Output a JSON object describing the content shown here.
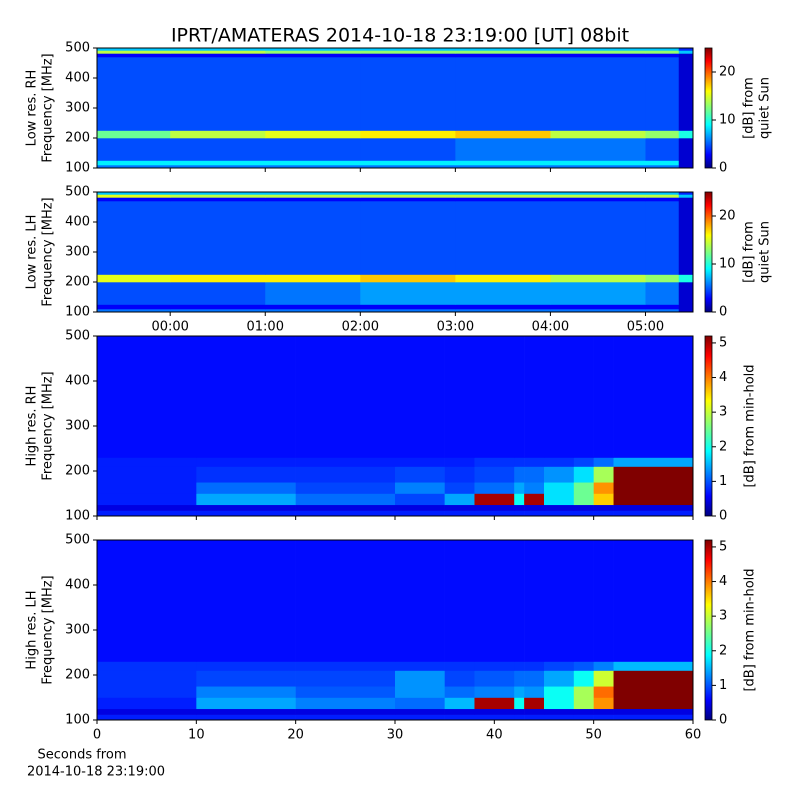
{
  "title": "IPRT/AMATERAS 2014-10-18 23:19:00 [UT]   08bit",
  "x_label": [
    "Seconds from",
    "2014-10-18 23:19:00"
  ],
  "chart_data": [
    {
      "type": "heatmap",
      "y_label": [
        "Low res. RH",
        "Frequency [MHz]"
      ],
      "xlim": [
        -0.77,
        5.5
      ],
      "xticks": [
        0,
        1,
        2,
        3,
        4,
        5
      ],
      "show_xtick_labels": false,
      "ylim": [
        100,
        500
      ],
      "yticks": [
        100,
        200,
        300,
        400,
        500
      ],
      "x_bins": [
        -0.77,
        0,
        1,
        2,
        3,
        4,
        5,
        5.35,
        5.5
      ],
      "y_bins": [
        100,
        110,
        125,
        200,
        225,
        470,
        482,
        492,
        500
      ],
      "z": [
        [
          6,
          6,
          6,
          6,
          6,
          6,
          6,
          2
        ],
        [
          9,
          9,
          9,
          9,
          9,
          9,
          9,
          2
        ],
        [
          5,
          5,
          5,
          5,
          6,
          6,
          5,
          2
        ],
        [
          12,
          14,
          15,
          16,
          17,
          14,
          13,
          10
        ],
        [
          5,
          5,
          5,
          5,
          5,
          5,
          5,
          2
        ],
        [
          3,
          3,
          3,
          3,
          3,
          3,
          3,
          2
        ],
        [
          14,
          14,
          13,
          13,
          13,
          13,
          13,
          8
        ],
        [
          8,
          8,
          8,
          8,
          8,
          8,
          8,
          4
        ]
      ],
      "colorbar": {
        "label": [
          "[dB] from",
          "quiet Sun"
        ],
        "zlim": [
          0,
          25
        ],
        "zticks": [
          0,
          10,
          20
        ]
      }
    },
    {
      "type": "heatmap",
      "y_label": [
        "Low res. LH",
        "Frequency [MHz]"
      ],
      "xlim": [
        -0.77,
        5.5
      ],
      "xticks": [
        {
          "value": 0,
          "label": "00:00"
        },
        {
          "value": 1,
          "label": "01:00"
        },
        {
          "value": 2,
          "label": "02:00"
        },
        {
          "value": 3,
          "label": "03:00"
        },
        {
          "value": 4,
          "label": "04:00"
        },
        {
          "value": 5,
          "label": "05:00"
        }
      ],
      "show_xtick_labels": true,
      "ylim": [
        100,
        500
      ],
      "yticks": [
        100,
        200,
        300,
        400,
        500
      ],
      "x_bins": [
        -0.77,
        0,
        1,
        2,
        3,
        4,
        5,
        5.35,
        5.5
      ],
      "y_bins": [
        100,
        110,
        125,
        200,
        225,
        470,
        482,
        492,
        500
      ],
      "z": [
        [
          6,
          6,
          6,
          6,
          6,
          6,
          6,
          2
        ],
        [
          3,
          3,
          3,
          3,
          3,
          3,
          3,
          2
        ],
        [
          5,
          5,
          6,
          7,
          7,
          7,
          6,
          2
        ],
        [
          15,
          16,
          16,
          17,
          16,
          14,
          13,
          10
        ],
        [
          5,
          5,
          5,
          5,
          5,
          5,
          5,
          2
        ],
        [
          3,
          3,
          3,
          3,
          3,
          3,
          3,
          2
        ],
        [
          15,
          14,
          14,
          14,
          14,
          14,
          14,
          8
        ],
        [
          8,
          8,
          8,
          8,
          8,
          8,
          8,
          4
        ]
      ],
      "colorbar": {
        "label": [
          "[dB] from",
          "quiet Sun"
        ],
        "zlim": [
          0,
          25
        ],
        "zticks": [
          0,
          10,
          20
        ]
      }
    },
    {
      "type": "heatmap",
      "y_label": [
        "High res. RH",
        "Frequency [MHz]"
      ],
      "xlim": [
        0,
        60
      ],
      "xticks": [
        0,
        10,
        20,
        30,
        40,
        50,
        60
      ],
      "show_xtick_labels": false,
      "ylim": [
        100,
        500
      ],
      "yticks": [
        100,
        200,
        300,
        400,
        500
      ],
      "x_bins": [
        0,
        10,
        20,
        30,
        35,
        38,
        42,
        43,
        45,
        48,
        50,
        52,
        60
      ],
      "y_bins": [
        100,
        112,
        125,
        150,
        175,
        210,
        230,
        500
      ],
      "z": [
        [
          0.8,
          0.8,
          0.8,
          0.8,
          0.8,
          0.8,
          0.8,
          0.8,
          0.8,
          0.8,
          0.8,
          0.8
        ],
        [
          0.5,
          0.5,
          0.5,
          0.5,
          0.5,
          0.5,
          0.5,
          0.5,
          0.5,
          0.5,
          0.5,
          0.5
        ],
        [
          0.8,
          1.5,
          1.2,
          1.0,
          1.5,
          5.0,
          2.0,
          5.0,
          1.8,
          2.5,
          3.5,
          5.2
        ],
        [
          0.8,
          1.2,
          1.0,
          1.3,
          1.0,
          1.2,
          1.5,
          1.3,
          1.8,
          2.5,
          3.8,
          5.2
        ],
        [
          0.8,
          0.9,
          0.9,
          1.0,
          0.9,
          1.0,
          1.2,
          1.2,
          1.4,
          1.8,
          2.8,
          5.2
        ],
        [
          0.8,
          0.8,
          0.8,
          0.8,
          0.8,
          0.9,
          0.9,
          0.9,
          0.9,
          1.0,
          1.2,
          1.5
        ],
        [
          0.7,
          0.7,
          0.7,
          0.7,
          0.7,
          0.7,
          0.7,
          0.7,
          0.7,
          0.7,
          0.7,
          0.7
        ]
      ],
      "colorbar": {
        "label": [
          "[dB] from min-hold"
        ],
        "zlim": [
          0,
          5.2
        ],
        "zticks": [
          0,
          1,
          2,
          3,
          4,
          5
        ]
      }
    },
    {
      "type": "heatmap",
      "y_label": [
        "High res. LH",
        "Frequency [MHz]"
      ],
      "xlim": [
        0,
        60
      ],
      "xticks": [
        0,
        10,
        20,
        30,
        40,
        50,
        60
      ],
      "show_xtick_labels": true,
      "ylim": [
        100,
        500
      ],
      "yticks": [
        100,
        200,
        300,
        400,
        500
      ],
      "x_bins": [
        0,
        10,
        20,
        30,
        35,
        38,
        42,
        43,
        45,
        48,
        50,
        52,
        60
      ],
      "y_bins": [
        100,
        112,
        125,
        150,
        175,
        210,
        230,
        500
      ],
      "z": [
        [
          0.8,
          0.8,
          0.8,
          0.8,
          0.8,
          0.8,
          0.8,
          0.8,
          0.8,
          0.8,
          0.8,
          0.8
        ],
        [
          0.5,
          0.5,
          0.5,
          0.5,
          0.5,
          0.5,
          0.5,
          0.5,
          0.5,
          0.5,
          0.5,
          0.5
        ],
        [
          0.8,
          1.5,
          1.3,
          1.2,
          1.6,
          5.0,
          2.0,
          5.0,
          2.0,
          2.8,
          3.8,
          5.2
        ],
        [
          0.9,
          1.3,
          1.1,
          1.4,
          1.2,
          1.3,
          1.5,
          1.4,
          2.0,
          2.8,
          4.0,
          5.2
        ],
        [
          0.9,
          1.0,
          1.0,
          1.4,
          1.0,
          1.1,
          1.2,
          1.2,
          1.5,
          2.0,
          3.0,
          5.2
        ],
        [
          0.9,
          0.9,
          0.9,
          0.9,
          0.9,
          0.9,
          0.9,
          0.9,
          1.0,
          1.1,
          1.3,
          1.6
        ],
        [
          0.7,
          0.7,
          0.7,
          0.7,
          0.7,
          0.7,
          0.7,
          0.7,
          0.7,
          0.7,
          0.7,
          0.7
        ]
      ],
      "colorbar": {
        "label": [
          "[dB] from min-hold"
        ],
        "zlim": [
          0,
          5.2
        ],
        "zticks": [
          0,
          1,
          2,
          3,
          4,
          5
        ]
      }
    }
  ]
}
